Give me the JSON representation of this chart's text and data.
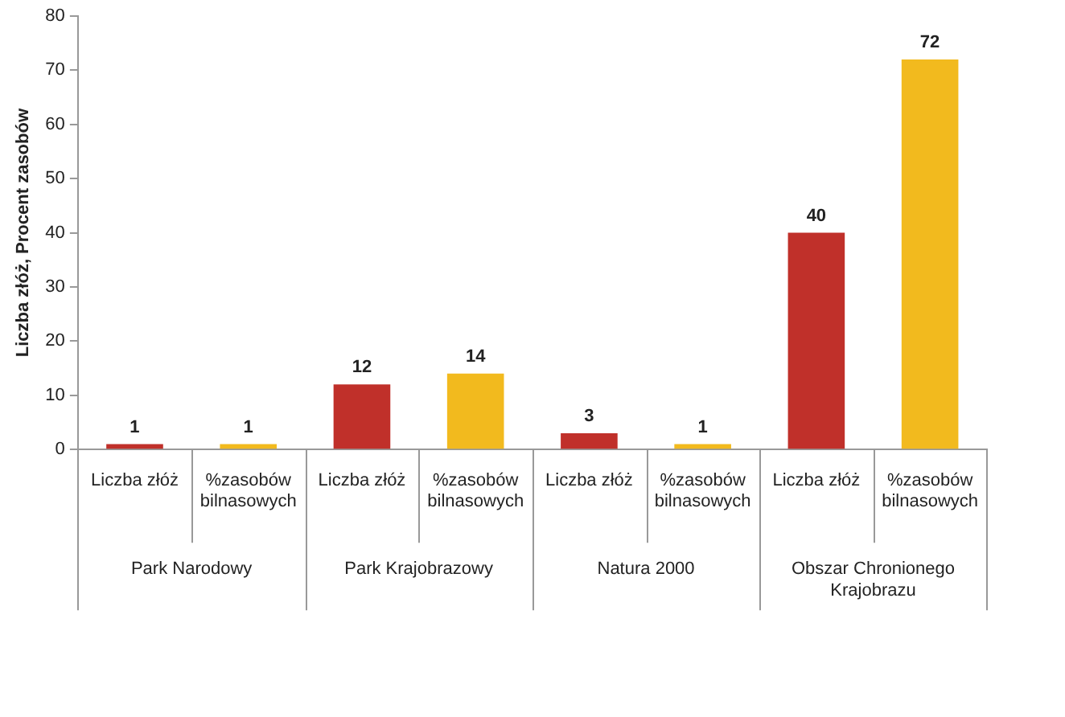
{
  "chart_data": {
    "type": "bar",
    "ylabel": "Liczba złóż, Procent zasobów",
    "categories": [
      "Park Narodowy",
      "Park Krajobrazowy",
      "Natura 2000",
      "Obszar Chronionego Krajobrazu"
    ],
    "series": [
      {
        "name": "Liczba złóż",
        "color": "#c0302a",
        "values": [
          1,
          12,
          3,
          40
        ]
      },
      {
        "name": "%zasobów bilnasowych",
        "color": "#f2ba1e",
        "values": [
          1,
          14,
          1,
          72
        ]
      }
    ],
    "ylim": [
      0,
      80
    ],
    "yticks": [
      0,
      10,
      20,
      30,
      40,
      50,
      60,
      70,
      80
    ],
    "grid": false,
    "legend": false,
    "data_labels": true
  }
}
